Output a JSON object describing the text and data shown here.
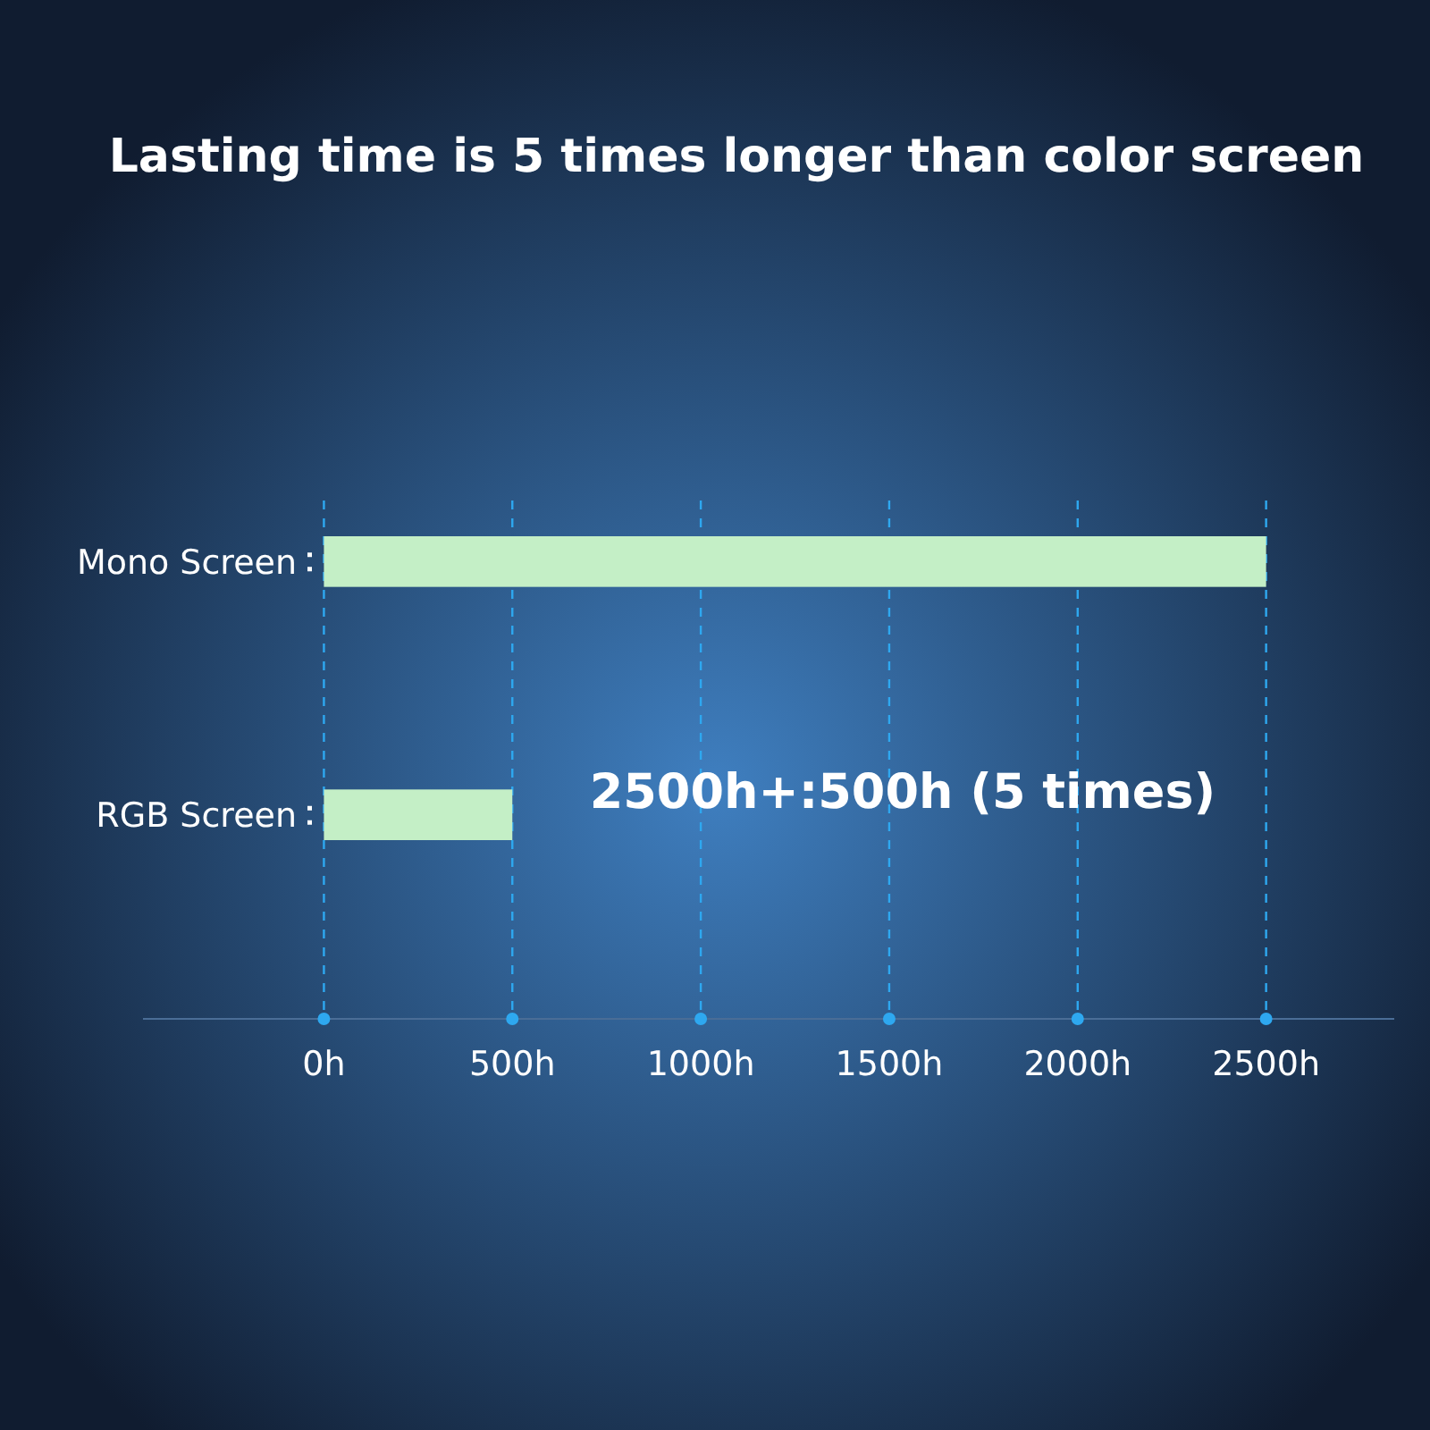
{
  "chart_data": {
    "type": "bar",
    "orientation": "horizontal",
    "title": "Lasting time is 5 times longer than color screen",
    "categories": [
      "Mono Screen",
      "RGB Screen"
    ],
    "values": [
      2500,
      500
    ],
    "color": "#c4efc6",
    "xlim": [
      -480,
      2840
    ],
    "xticks": [
      {
        "value": 0,
        "label": "0h"
      },
      {
        "value": 500,
        "label": "500h"
      },
      {
        "value": 1000,
        "label": "1000h"
      },
      {
        "value": 1500,
        "label": "1500h"
      },
      {
        "value": 2000,
        "label": "2000h"
      },
      {
        "value": 2500,
        "label": "2500h"
      }
    ],
    "grid": "x",
    "annotations": [
      "2500h+:500h (5 times)"
    ]
  }
}
